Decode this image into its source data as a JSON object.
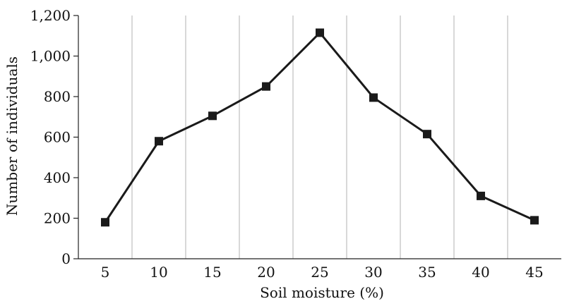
{
  "chart_data": {
    "type": "line",
    "title": "",
    "xlabel": "Soil moisture (%)",
    "ylabel": "Number of individuals",
    "categories": [
      "5",
      "10",
      "15",
      "20",
      "25",
      "30",
      "35",
      "40",
      "45"
    ],
    "series": [
      {
        "values": [
          180,
          580,
          705,
          850,
          1115,
          795,
          615,
          310,
          190
        ]
      }
    ],
    "ylim": [
      0,
      1200
    ],
    "y_ticks": [
      0,
      200,
      400,
      600,
      800,
      1000,
      1200
    ],
    "y_tick_labels": [
      "0",
      "200",
      "400",
      "600",
      "800",
      "1,000",
      "1,200"
    ],
    "grid": "vertical lines between categories",
    "legend": "none",
    "marker": "square",
    "colors": {
      "line": "#1a1a1a",
      "marker": "#1a1a1a",
      "grid": "#b0b0b0",
      "axis": "#222222"
    }
  }
}
